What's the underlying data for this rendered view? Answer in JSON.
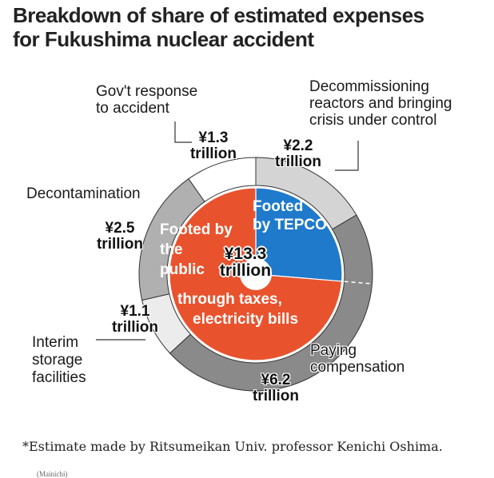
{
  "title": {
    "line1": "Breakdown of share of estimated expenses",
    "line2": "for Fukushima nuclear accident"
  },
  "chart_data": {
    "type": "pie",
    "subtype": "nested donut",
    "title": "Breakdown of share of estimated expenses for Fukushima nuclear accident",
    "unit": "trillion yen",
    "total": {
      "value": 13.3,
      "label_line1": "¥13.3",
      "label_line2": "trillion"
    },
    "outer_ring": [
      {
        "name": "Decommissioning reactors and bringing crisis under control",
        "value": 2.2,
        "value_line1": "¥2.2",
        "value_line2": "trillion",
        "color": "#d4d4d4"
      },
      {
        "name": "Paying compensation",
        "value": 6.2,
        "value_line1": "¥6.2",
        "value_line2": "trillion",
        "color": "#8a8a8a"
      },
      {
        "name": "Interim storage facilities",
        "value": 1.1,
        "value_line1": "¥1.1",
        "value_line2": "trillion",
        "color": "#ececec"
      },
      {
        "name": "Decontamination",
        "value": 2.5,
        "value_line1": "¥2.5",
        "value_line2": "trillion",
        "color": "#b0b0b0"
      },
      {
        "name": "Gov't response to accident",
        "value": 1.3,
        "value_line1": "¥1.3",
        "value_line2": "trillion",
        "color": "#ffffff"
      }
    ],
    "inner_pie": [
      {
        "name": "Footed by TEPCO",
        "label_line1": "Footed",
        "label_line2": "by TEPCO",
        "value": 3.5,
        "color": "#1f7acb"
      },
      {
        "name": "Footed by the public through taxes, electricity bills",
        "label_lines": [
          "Footed by",
          "the",
          "public",
          "through taxes,",
          "electricity bills"
        ],
        "value": 9.8,
        "color": "#e8532e"
      }
    ],
    "notes": "Inner split between TEPCO and public is approximate (dashed line divides compensation segment)"
  },
  "labels": {
    "gov_line1": "Gov't response",
    "gov_line2": "to accident",
    "decom_line1": "Decommissioning",
    "decom_line2": "reactors and bringing",
    "decom_line3": "crisis under control",
    "decontam": "Decontamination",
    "interim_line1": "Interim",
    "interim_line2": "storage",
    "interim_line3": "facilities",
    "comp_line1": "Paying",
    "comp_line2": "compensation"
  },
  "footnote": "*Estimate made by Ritsumeikan Univ. professor Kenichi Oshima.",
  "credit": "(Mainichi)"
}
